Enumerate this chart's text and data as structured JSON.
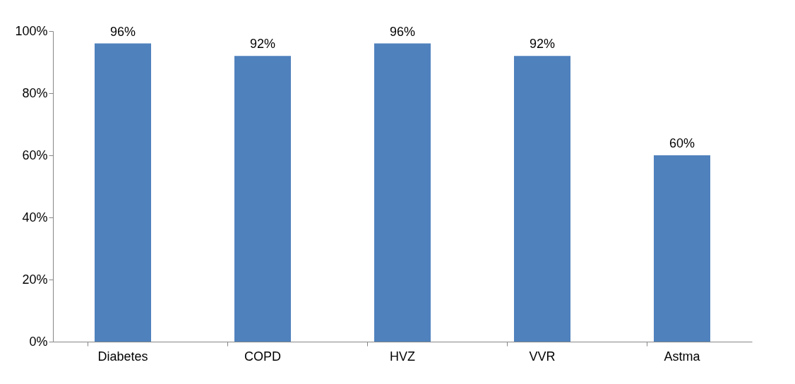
{
  "chart_data": {
    "type": "bar",
    "categories": [
      "Diabetes",
      "COPD",
      "HVZ",
      "VVR",
      "Astma"
    ],
    "values": [
      96,
      92,
      96,
      92,
      60
    ],
    "value_labels": [
      "96%",
      "92%",
      "96%",
      "92%",
      "60%"
    ],
    "color": "#4f81bd",
    "ylim": [
      0,
      100
    ],
    "yticks": [
      {
        "value": 0,
        "label": "0%"
      },
      {
        "value": 20,
        "label": "20%"
      },
      {
        "value": 40,
        "label": "40%"
      },
      {
        "value": 60,
        "label": "60%"
      },
      {
        "value": 80,
        "label": "80%"
      },
      {
        "value": 100,
        "label": "100%"
      }
    ],
    "grid": false
  }
}
